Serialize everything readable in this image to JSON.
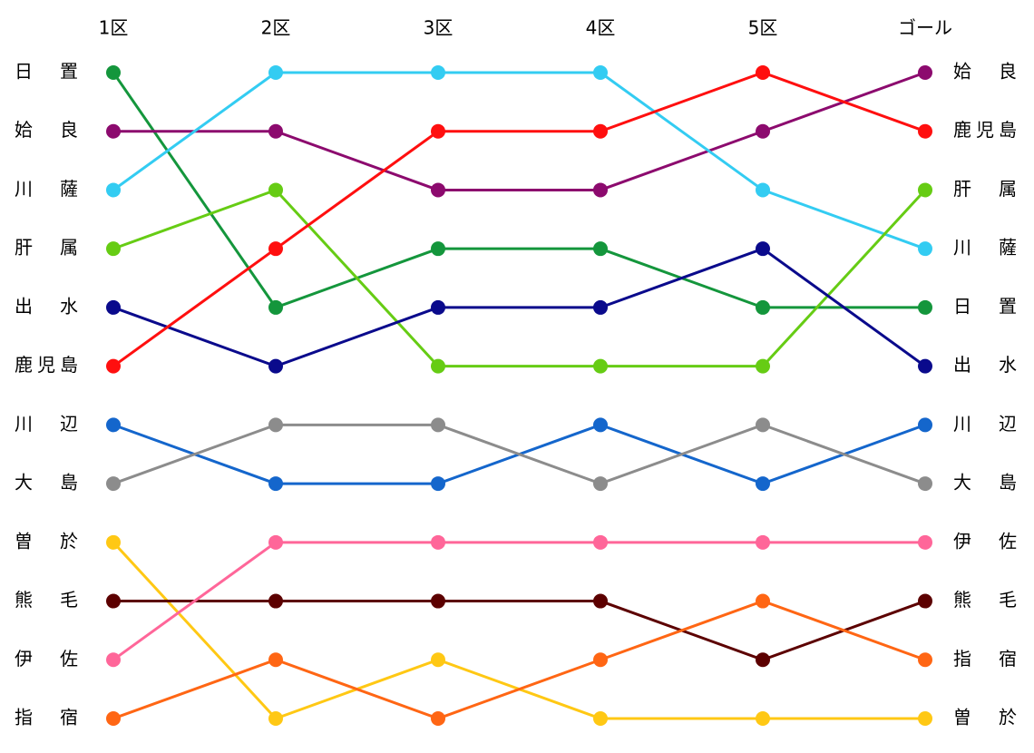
{
  "chart_data": {
    "type": "line",
    "categories": [
      "1区",
      "2区",
      "3区",
      "4区",
      "5区",
      "ゴール"
    ],
    "ylim": [
      1,
      12
    ],
    "y_inverted": true,
    "series": [
      {
        "name": "日置",
        "color": "#14963c",
        "values": [
          1,
          5,
          4,
          4,
          5,
          5
        ]
      },
      {
        "name": "姶良",
        "color": "#8c0a6e",
        "values": [
          2,
          2,
          3,
          3,
          2,
          1
        ]
      },
      {
        "name": "川薩",
        "color": "#33ccf2",
        "values": [
          3,
          1,
          1,
          1,
          3,
          4
        ]
      },
      {
        "name": "肝属",
        "color": "#66cc14",
        "values": [
          4,
          3,
          6,
          6,
          6,
          3
        ]
      },
      {
        "name": "出水",
        "color": "#0a0a8c",
        "values": [
          5,
          6,
          5,
          5,
          4,
          6
        ]
      },
      {
        "name": "鹿児島",
        "color": "#ff0f0f",
        "values": [
          6,
          4,
          2,
          2,
          1,
          2
        ]
      },
      {
        "name": "川辺",
        "color": "#1466cc",
        "values": [
          7,
          8,
          8,
          7,
          8,
          7
        ]
      },
      {
        "name": "大島",
        "color": "#8c8c8c",
        "values": [
          8,
          7,
          7,
          8,
          7,
          8
        ]
      },
      {
        "name": "曽於",
        "color": "#ffc814",
        "values": [
          9,
          12,
          11,
          12,
          12,
          12
        ]
      },
      {
        "name": "熊毛",
        "color": "#5c0000",
        "values": [
          10,
          10,
          10,
          10,
          11,
          10
        ]
      },
      {
        "name": "伊佐",
        "color": "#ff6699",
        "values": [
          11,
          9,
          9,
          9,
          9,
          9
        ]
      },
      {
        "name": "指宿",
        "color": "#ff6614",
        "values": [
          12,
          11,
          12,
          11,
          10,
          11
        ]
      }
    ]
  }
}
